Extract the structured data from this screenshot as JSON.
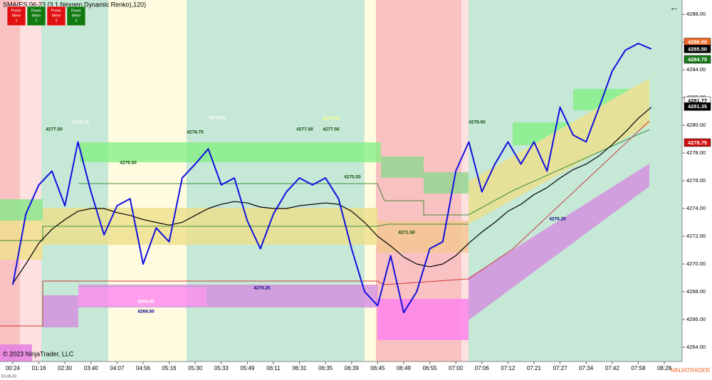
{
  "title": "SMA(ES 06-23 (3 1 Nexgen Dynamic Renko),120)",
  "power_meters": [
    {
      "lines": [
        "Power",
        "Meter",
        "1"
      ],
      "color": "#e01010"
    },
    {
      "lines": [
        "Power",
        "Meter",
        "2"
      ],
      "color": "#107a10"
    },
    {
      "lines": [
        "Power",
        "Meter",
        "3"
      ],
      "color": "#e01010"
    },
    {
      "lines": [
        "Power",
        "Meter",
        "4"
      ],
      "color": "#107a10"
    }
  ],
  "copyright": "© 2023 NinjaTrader, LLC",
  "instrument": "ES 06-23",
  "brand": "NINJATRADER",
  "chart_data": {
    "type": "line",
    "categories": [
      "00:24",
      null,
      "01:16",
      null,
      "02:30",
      null,
      "03:40",
      null,
      "04:07",
      null,
      "04:56",
      null,
      "05:16",
      null,
      "05:30",
      null,
      "05:33",
      null,
      "05:49",
      null,
      "06:11",
      null,
      "06:31",
      null,
      "06:35",
      null,
      "06:39",
      null,
      "06:45",
      null,
      "06:49",
      null,
      "06:55",
      null,
      "07:00",
      null,
      "07:06",
      null,
      "07:12",
      null,
      "07:21",
      null,
      "07:27",
      null,
      "07:34",
      null,
      "07:42",
      null,
      "07:58",
      null,
      "08:28"
    ],
    "series": [
      {
        "color": "#1010e0",
        "values": [
          4268.5,
          4273.6,
          4275.7,
          4276.7,
          4274.2,
          4278.8,
          4275.2,
          4272.1,
          4274.2,
          4274.7,
          4270,
          4272.6,
          4271.6,
          4276.2,
          4277.2,
          4278.3,
          4275.7,
          4276.2,
          4273.1,
          4271.1,
          4273.6,
          4275.2,
          4276.2,
          4275.7,
          4276.2,
          4274.7,
          4271.1,
          4268,
          4267,
          4270.6,
          4266.5,
          4268,
          4271.1,
          4271.6,
          4276.7,
          4278.8,
          4275.2,
          4277.2,
          4278.8,
          4277.2,
          4278.8,
          4276.7,
          4281.3,
          4279.3,
          4278.8,
          4281.3,
          4283.9,
          4285.4,
          4285.9,
          4285.5,
          null
        ]
      },
      {
        "color": "#000000",
        "values": [
          4268.6,
          4270,
          4271.5,
          4272.5,
          4273.2,
          4273.8,
          4274,
          4274,
          4273.7,
          4273.5,
          4273.2,
          4273,
          4272.8,
          4273,
          4273.5,
          4274,
          4274.3,
          4274.5,
          4274.4,
          4274.1,
          4274,
          4274,
          4274.2,
          4274.3,
          4274.4,
          4274.3,
          4273.8,
          4273,
          4272,
          4271.3,
          4270.5,
          4270,
          4269.8,
          4270,
          4270.6,
          4271.5,
          4272.3,
          4273,
          4273.8,
          4274.3,
          4275,
          4275.5,
          4276.2,
          4276.8,
          4277.2,
          4277.8,
          4278.6,
          4279.5,
          4280.5,
          4281.3,
          null
        ]
      }
    ],
    "ylim": [
      4262.97,
      4289.03
    ],
    "yticks": [
      {
        "value": 4264,
        "label": "4264.00"
      },
      {
        "value": 4266,
        "label": "4266.00"
      },
      {
        "value": 4268,
        "label": "4268.00"
      },
      {
        "value": 4270,
        "label": "4270.00"
      },
      {
        "value": 4272,
        "label": "4272.00"
      },
      {
        "value": 4274,
        "label": "4274.00"
      },
      {
        "value": 4276,
        "label": "4276.00"
      },
      {
        "value": 4278,
        "label": "4278.00"
      },
      {
        "value": 4280,
        "label": "4280.00"
      },
      {
        "value": 4282,
        "label": "4282.00"
      },
      {
        "value": 4284,
        "label": "4284.00"
      },
      {
        "value": 4286,
        "label": "4286.00"
      },
      {
        "value": 4288,
        "label": "4288.00"
      }
    ],
    "price_markers": [
      {
        "value": 4286,
        "label": "4286.00",
        "color": "#f26522"
      },
      {
        "value": 4285.5,
        "label": "4285.50",
        "color": "#000000"
      },
      {
        "value": 4284.75,
        "label": "4284.75",
        "color": "#1a7a1a"
      },
      {
        "value": 4281.77,
        "label": "4281.77",
        "color": "#ffffff"
      },
      {
        "value": 4281.35,
        "label": "4281.35",
        "color": "#000000"
      },
      {
        "value": 4278.75,
        "label": "4278.75",
        "color": "#d01010"
      }
    ],
    "annotations": [
      "4278.75",
      "4277.50",
      "4276.50",
      "4278.75",
      "4279.00",
      "4277.50",
      "4277.50",
      "4277.50",
      "4275.50",
      "4271.50",
      "4279.50",
      "4275.25",
      "4270.25",
      "4268.50",
      "4268.50"
    ]
  }
}
